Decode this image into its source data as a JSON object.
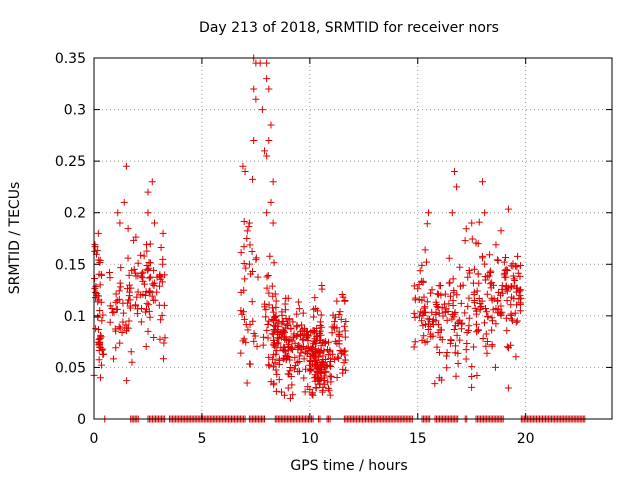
{
  "chart_data": {
    "type": "scatter",
    "title": "Day 213 of 2018, SRMTID for receiver nors",
    "xlabel": "GPS time / hours",
    "ylabel": "SRMTID / TECUs",
    "xlim": [
      0,
      24
    ],
    "ylim": [
      0,
      0.35
    ],
    "xticks": [
      0,
      5,
      10,
      15,
      20
    ],
    "xtick_labels": [
      "0",
      "5",
      "10",
      "15",
      "20"
    ],
    "yticks": [
      0,
      0.05,
      0.1,
      0.15,
      0.2,
      0.25,
      0.3,
      0.35
    ],
    "ytick_labels": [
      "0",
      "0.05",
      "0.1",
      "0.15",
      "0.2",
      "0.25",
      "0.3",
      "0.35"
    ],
    "grid": true,
    "marker": "plus",
    "color": "#e00000",
    "zero_segments": [
      [
        0.5,
        0.55
      ],
      [
        1.7,
        2.1
      ],
      [
        2.5,
        3.3
      ],
      [
        3.5,
        7.0
      ],
      [
        7.2,
        7.9
      ],
      [
        8.4,
        10.2
      ],
      [
        10.4,
        10.5
      ],
      [
        10.8,
        11.0
      ],
      [
        11.6,
        14.8
      ],
      [
        15.2,
        15.6
      ],
      [
        15.8,
        16.9
      ],
      [
        17.2,
        17.3
      ],
      [
        17.7,
        19.0
      ],
      [
        19.8,
        22.8
      ]
    ],
    "clusters": [
      {
        "x0": 0.0,
        "x1": 0.4,
        "yc": 0.12,
        "spread": 0.03,
        "n": 30
      },
      {
        "x0": 0.2,
        "x1": 0.5,
        "yc": 0.075,
        "spread": 0.012,
        "n": 22
      },
      {
        "x0": 0.7,
        "x1": 1.7,
        "yc": 0.11,
        "spread": 0.025,
        "n": 45
      },
      {
        "x0": 1.6,
        "x1": 2.6,
        "yc": 0.12,
        "spread": 0.025,
        "n": 45
      },
      {
        "x0": 2.4,
        "x1": 3.3,
        "yc": 0.13,
        "spread": 0.03,
        "n": 40
      },
      {
        "x0": 6.8,
        "x1": 7.6,
        "yc": 0.12,
        "spread": 0.045,
        "n": 40
      },
      {
        "x0": 7.8,
        "x1": 8.5,
        "yc": 0.09,
        "spread": 0.03,
        "n": 40
      },
      {
        "x0": 8.3,
        "x1": 9.5,
        "yc": 0.075,
        "spread": 0.02,
        "n": 120
      },
      {
        "x0": 9.5,
        "x1": 10.6,
        "yc": 0.075,
        "spread": 0.02,
        "n": 90
      },
      {
        "x0": 10.0,
        "x1": 11.0,
        "yc": 0.05,
        "spread": 0.015,
        "n": 90
      },
      {
        "x0": 11.0,
        "x1": 11.7,
        "yc": 0.085,
        "spread": 0.025,
        "n": 45
      },
      {
        "x0": 14.8,
        "x1": 15.5,
        "yc": 0.11,
        "spread": 0.03,
        "n": 40
      },
      {
        "x0": 15.5,
        "x1": 16.7,
        "yc": 0.1,
        "spread": 0.025,
        "n": 60
      },
      {
        "x0": 16.6,
        "x1": 17.8,
        "yc": 0.1,
        "spread": 0.03,
        "n": 60
      },
      {
        "x0": 17.8,
        "x1": 18.8,
        "yc": 0.11,
        "spread": 0.03,
        "n": 55
      },
      {
        "x0": 18.8,
        "x1": 19.8,
        "yc": 0.12,
        "spread": 0.025,
        "n": 70
      }
    ],
    "outliers": [
      [
        0.2,
        0.18
      ],
      [
        1.2,
        0.19
      ],
      [
        1.5,
        0.245
      ],
      [
        1.4,
        0.21
      ],
      [
        1.1,
        0.2
      ],
      [
        2.5,
        0.22
      ],
      [
        2.7,
        0.23
      ],
      [
        2.5,
        0.2
      ],
      [
        3.2,
        0.18
      ],
      [
        6.9,
        0.245
      ],
      [
        7.0,
        0.24
      ],
      [
        7.2,
        0.19
      ],
      [
        7.4,
        0.35
      ],
      [
        7.5,
        0.345
      ],
      [
        7.5,
        0.31
      ],
      [
        7.4,
        0.32
      ],
      [
        7.4,
        0.27
      ],
      [
        7.7,
        0.345
      ],
      [
        8.0,
        0.33
      ],
      [
        8.0,
        0.345
      ],
      [
        7.8,
        0.3
      ],
      [
        8.1,
        0.32
      ],
      [
        8.2,
        0.285
      ],
      [
        8.1,
        0.27
      ],
      [
        7.9,
        0.26
      ],
      [
        8.0,
        0.255
      ],
      [
        8.3,
        0.23
      ],
      [
        8.2,
        0.21
      ],
      [
        8.0,
        0.2
      ],
      [
        8.3,
        0.19
      ],
      [
        15.5,
        0.2
      ],
      [
        16.7,
        0.24
      ],
      [
        16.8,
        0.225
      ],
      [
        16.6,
        0.2
      ],
      [
        17.5,
        0.19
      ],
      [
        18.0,
        0.23
      ],
      [
        18.1,
        0.2
      ],
      [
        17.8,
        0.17
      ],
      [
        9.0,
        0.03
      ],
      [
        9.1,
        0.02
      ],
      [
        10.3,
        0.03
      ],
      [
        10.5,
        0.045
      ],
      [
        16.0,
        0.04
      ],
      [
        18.6,
        0.05
      ],
      [
        19.2,
        0.03
      ],
      [
        0.3,
        0.04
      ]
    ]
  }
}
